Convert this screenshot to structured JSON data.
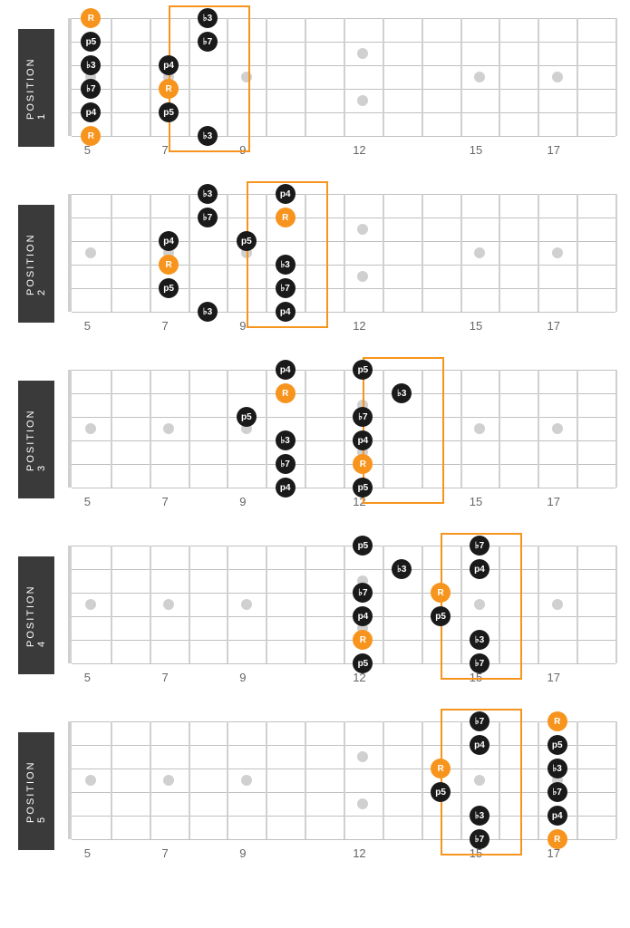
{
  "layout": {
    "fret_start": 4,
    "fret_end": 18,
    "strings": 6,
    "string_spacing": 26,
    "fret_labels": [
      5,
      7,
      9,
      12,
      15,
      17
    ],
    "inlay_single": [
      5,
      7,
      9,
      15,
      17
    ],
    "inlay_double": [
      12
    ],
    "colors": {
      "root": "#f7941d",
      "interval": "#1a1a1a",
      "label_bg": "#3a3a3a",
      "fret_line": "#d0d0d0",
      "string_line": "#c0c0c0",
      "highlight_border": "#f7941d"
    }
  },
  "positions": [
    {
      "label": "POSITION 1",
      "highlight": {
        "fret_from": 6.5,
        "fret_to": 8.5
      },
      "notes": [
        {
          "string": 1,
          "fret": 5,
          "label": "R",
          "root": true
        },
        {
          "string": 1,
          "fret": 8,
          "label": "♭3",
          "root": false
        },
        {
          "string": 2,
          "fret": 5,
          "label": "p5",
          "root": false
        },
        {
          "string": 2,
          "fret": 8,
          "label": "♭7",
          "root": false
        },
        {
          "string": 3,
          "fret": 5,
          "label": "♭3",
          "root": false
        },
        {
          "string": 3,
          "fret": 7,
          "label": "p4",
          "root": false
        },
        {
          "string": 4,
          "fret": 5,
          "label": "♭7",
          "root": false
        },
        {
          "string": 4,
          "fret": 7,
          "label": "R",
          "root": true
        },
        {
          "string": 5,
          "fret": 5,
          "label": "p4",
          "root": false
        },
        {
          "string": 5,
          "fret": 7,
          "label": "p5",
          "root": false
        },
        {
          "string": 6,
          "fret": 5,
          "label": "R",
          "root": true
        },
        {
          "string": 6,
          "fret": 8,
          "label": "♭3",
          "root": false
        }
      ]
    },
    {
      "label": "POSITION 2",
      "highlight": {
        "fret_from": 8.5,
        "fret_to": 10.5
      },
      "notes": [
        {
          "string": 1,
          "fret": 8,
          "label": "♭3",
          "root": false
        },
        {
          "string": 1,
          "fret": 10,
          "label": "p4",
          "root": false
        },
        {
          "string": 2,
          "fret": 8,
          "label": "♭7",
          "root": false
        },
        {
          "string": 2,
          "fret": 10,
          "label": "R",
          "root": true
        },
        {
          "string": 3,
          "fret": 7,
          "label": "p4",
          "root": false
        },
        {
          "string": 3,
          "fret": 9,
          "label": "p5",
          "root": false
        },
        {
          "string": 4,
          "fret": 7,
          "label": "R",
          "root": true
        },
        {
          "string": 4,
          "fret": 10,
          "label": "♭3",
          "root": false
        },
        {
          "string": 5,
          "fret": 7,
          "label": "p5",
          "root": false
        },
        {
          "string": 5,
          "fret": 10,
          "label": "♭7",
          "root": false
        },
        {
          "string": 6,
          "fret": 8,
          "label": "♭3",
          "root": false
        },
        {
          "string": 6,
          "fret": 10,
          "label": "p4",
          "root": false
        }
      ]
    },
    {
      "label": "POSITION 3",
      "highlight": {
        "fret_from": 11.5,
        "fret_to": 13.5
      },
      "notes": [
        {
          "string": 1,
          "fret": 10,
          "label": "p4",
          "root": false
        },
        {
          "string": 1,
          "fret": 12,
          "label": "p5",
          "root": false
        },
        {
          "string": 2,
          "fret": 10,
          "label": "R",
          "root": true
        },
        {
          "string": 2,
          "fret": 13,
          "label": "♭3",
          "root": false
        },
        {
          "string": 3,
          "fret": 9,
          "label": "p5",
          "root": false
        },
        {
          "string": 3,
          "fret": 12,
          "label": "♭7",
          "root": false
        },
        {
          "string": 4,
          "fret": 10,
          "label": "♭3",
          "root": false
        },
        {
          "string": 4,
          "fret": 12,
          "label": "p4",
          "root": false
        },
        {
          "string": 5,
          "fret": 10,
          "label": "♭7",
          "root": false
        },
        {
          "string": 5,
          "fret": 12,
          "label": "R",
          "root": true
        },
        {
          "string": 6,
          "fret": 10,
          "label": "p4",
          "root": false
        },
        {
          "string": 6,
          "fret": 12,
          "label": "p5",
          "root": false
        }
      ]
    },
    {
      "label": "POSITION 4",
      "highlight": {
        "fret_from": 13.5,
        "fret_to": 15.5
      },
      "notes": [
        {
          "string": 1,
          "fret": 12,
          "label": "p5",
          "root": false
        },
        {
          "string": 1,
          "fret": 15,
          "label": "♭7",
          "root": false
        },
        {
          "string": 2,
          "fret": 13,
          "label": "♭3",
          "root": false
        },
        {
          "string": 2,
          "fret": 15,
          "label": "p4",
          "root": false
        },
        {
          "string": 3,
          "fret": 12,
          "label": "♭7",
          "root": false
        },
        {
          "string": 3,
          "fret": 14,
          "label": "R",
          "root": true
        },
        {
          "string": 4,
          "fret": 12,
          "label": "p4",
          "root": false
        },
        {
          "string": 4,
          "fret": 14,
          "label": "p5",
          "root": false
        },
        {
          "string": 5,
          "fret": 12,
          "label": "R",
          "root": true
        },
        {
          "string": 5,
          "fret": 15,
          "label": "♭3",
          "root": false
        },
        {
          "string": 6,
          "fret": 12,
          "label": "p5",
          "root": false
        },
        {
          "string": 6,
          "fret": 15,
          "label": "♭7",
          "root": false
        }
      ]
    },
    {
      "label": "POSITION 5",
      "highlight": {
        "fret_from": 13.5,
        "fret_to": 15.5
      },
      "notes": [
        {
          "string": 1,
          "fret": 15,
          "label": "♭7",
          "root": false
        },
        {
          "string": 1,
          "fret": 17,
          "label": "R",
          "root": true
        },
        {
          "string": 2,
          "fret": 15,
          "label": "p4",
          "root": false
        },
        {
          "string": 2,
          "fret": 17,
          "label": "p5",
          "root": false
        },
        {
          "string": 3,
          "fret": 14,
          "label": "R",
          "root": true
        },
        {
          "string": 3,
          "fret": 17,
          "label": "♭3",
          "root": false
        },
        {
          "string": 4,
          "fret": 14,
          "label": "p5",
          "root": false
        },
        {
          "string": 4,
          "fret": 17,
          "label": "♭7",
          "root": false
        },
        {
          "string": 5,
          "fret": 15,
          "label": "♭3",
          "root": false
        },
        {
          "string": 5,
          "fret": 17,
          "label": "p4",
          "root": false
        },
        {
          "string": 6,
          "fret": 15,
          "label": "♭7",
          "root": false
        },
        {
          "string": 6,
          "fret": 17,
          "label": "R",
          "root": true
        }
      ]
    }
  ]
}
